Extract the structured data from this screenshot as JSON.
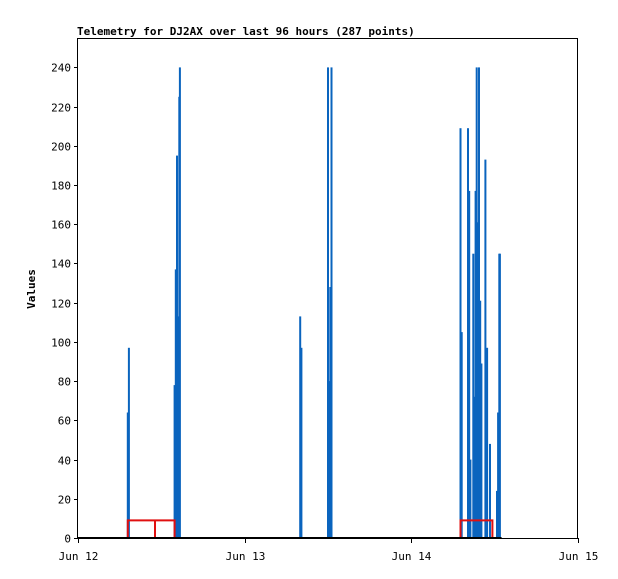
{
  "chart_data": {
    "type": "bar",
    "title": "Telemetry for DJ2AX over last 96 hours (287 points)",
    "xlabel": "",
    "ylabel": "Values",
    "xlim": [
      "2024-06-12T00:00",
      "2024-06-15T00:00"
    ],
    "ylim": [
      0,
      255
    ],
    "y_ticks": [
      0,
      20,
      40,
      60,
      80,
      100,
      120,
      140,
      160,
      180,
      200,
      220,
      240
    ],
    "x_ticks": [
      {
        "t": "2024-06-12T00:00",
        "label": "Jun 12"
      },
      {
        "t": "2024-06-13T00:00",
        "label": "Jun 13"
      },
      {
        "t": "2024-06-14T00:00",
        "label": "Jun 14"
      },
      {
        "t": "2024-06-15T00:00",
        "label": "Jun 15"
      }
    ],
    "grid": false,
    "colors": {
      "series_blue": "#0a64be",
      "series_red": "#e01010",
      "axis": "#000000"
    },
    "series": [
      {
        "style": "bars",
        "color": "#0a64be",
        "points": [
          {
            "t": "2024-06-12T07:10",
            "v": 64
          },
          {
            "t": "2024-06-12T07:20",
            "v": 97
          },
          {
            "t": "2024-06-12T13:55",
            "v": 78
          },
          {
            "t": "2024-06-12T14:05",
            "v": 137
          },
          {
            "t": "2024-06-12T14:15",
            "v": 195
          },
          {
            "t": "2024-06-12T14:25",
            "v": 113
          },
          {
            "t": "2024-06-12T14:35",
            "v": 225
          },
          {
            "t": "2024-06-12T14:40",
            "v": 240
          },
          {
            "t": "2024-06-13T08:00",
            "v": 113
          },
          {
            "t": "2024-06-13T08:10",
            "v": 97
          },
          {
            "t": "2024-06-13T12:00",
            "v": 240
          },
          {
            "t": "2024-06-13T12:10",
            "v": 80
          },
          {
            "t": "2024-06-13T12:20",
            "v": 128
          },
          {
            "t": "2024-06-13T12:30",
            "v": 240
          },
          {
            "t": "2024-06-14T07:05",
            "v": 209
          },
          {
            "t": "2024-06-14T07:15",
            "v": 105
          },
          {
            "t": "2024-06-14T08:10",
            "v": 209
          },
          {
            "t": "2024-06-14T08:20",
            "v": 177
          },
          {
            "t": "2024-06-14T08:30",
            "v": 40
          },
          {
            "t": "2024-06-14T08:55",
            "v": 145
          },
          {
            "t": "2024-06-14T09:05",
            "v": 72
          },
          {
            "t": "2024-06-14T09:15",
            "v": 177
          },
          {
            "t": "2024-06-14T09:25",
            "v": 240
          },
          {
            "t": "2024-06-14T09:35",
            "v": 161
          },
          {
            "t": "2024-06-14T09:45",
            "v": 240
          },
          {
            "t": "2024-06-14T09:55",
            "v": 121
          },
          {
            "t": "2024-06-14T10:05",
            "v": 89
          },
          {
            "t": "2024-06-14T10:40",
            "v": 193
          },
          {
            "t": "2024-06-14T10:55",
            "v": 97
          },
          {
            "t": "2024-06-14T11:20",
            "v": 48
          },
          {
            "t": "2024-06-14T12:20",
            "v": 24
          },
          {
            "t": "2024-06-14T12:30",
            "v": 64
          },
          {
            "t": "2024-06-14T12:40",
            "v": 145
          },
          {
            "t": "2024-06-14T12:45",
            "v": 145
          }
        ]
      },
      {
        "style": "step",
        "color": "#e01010",
        "segments": [
          [
            {
              "t": "2024-06-12T07:10",
              "v": 0
            },
            {
              "t": "2024-06-12T07:10",
              "v": 9
            },
            {
              "t": "2024-06-12T11:05",
              "v": 9
            },
            {
              "t": "2024-06-12T11:05",
              "v": 0
            },
            {
              "t": "2024-06-12T11:05",
              "v": 9
            },
            {
              "t": "2024-06-12T13:55",
              "v": 9
            },
            {
              "t": "2024-06-12T13:55",
              "v": 0
            }
          ],
          [
            {
              "t": "2024-06-14T07:05",
              "v": 0
            },
            {
              "t": "2024-06-14T07:05",
              "v": 9
            },
            {
              "t": "2024-06-14T11:40",
              "v": 9
            },
            {
              "t": "2024-06-14T11:40",
              "v": 0
            }
          ]
        ]
      },
      {
        "style": "line",
        "color": "#000000",
        "points": [
          {
            "t": "2024-06-12T00:00",
            "v": 0
          },
          {
            "t": "2024-06-14T13:00",
            "v": 0
          }
        ]
      }
    ]
  }
}
